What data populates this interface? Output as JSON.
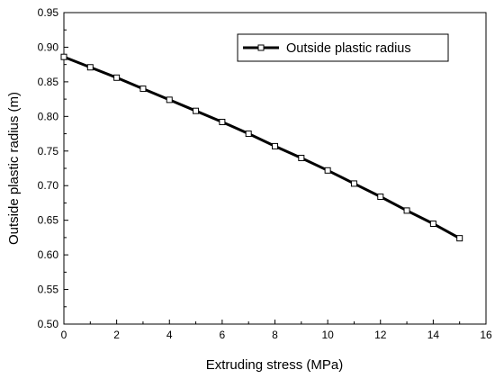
{
  "chart_data": {
    "type": "line",
    "title": "",
    "xlabel": "Extruding stress (MPa)",
    "ylabel": "Outside plastic radius (m)",
    "xlim": [
      0,
      16
    ],
    "ylim": [
      0.5,
      0.95
    ],
    "x_ticks": [
      "0",
      "2",
      "4",
      "6",
      "8",
      "10",
      "12",
      "14",
      "16"
    ],
    "y_ticks": [
      "0.50",
      "0.55",
      "0.60",
      "0.65",
      "0.70",
      "0.75",
      "0.80",
      "0.85",
      "0.90",
      "0.95"
    ],
    "grid": false,
    "legend_position": "top-right",
    "series": [
      {
        "name": "Outside plastic radius",
        "marker": "open-square",
        "color": "#000000",
        "x": [
          0,
          1,
          2,
          3,
          4,
          5,
          6,
          7,
          8,
          9,
          10,
          11,
          12,
          13,
          14,
          15
        ],
        "y": [
          0.886,
          0.871,
          0.856,
          0.84,
          0.824,
          0.808,
          0.792,
          0.775,
          0.757,
          0.74,
          0.722,
          0.703,
          0.684,
          0.664,
          0.645,
          0.624
        ]
      }
    ]
  }
}
